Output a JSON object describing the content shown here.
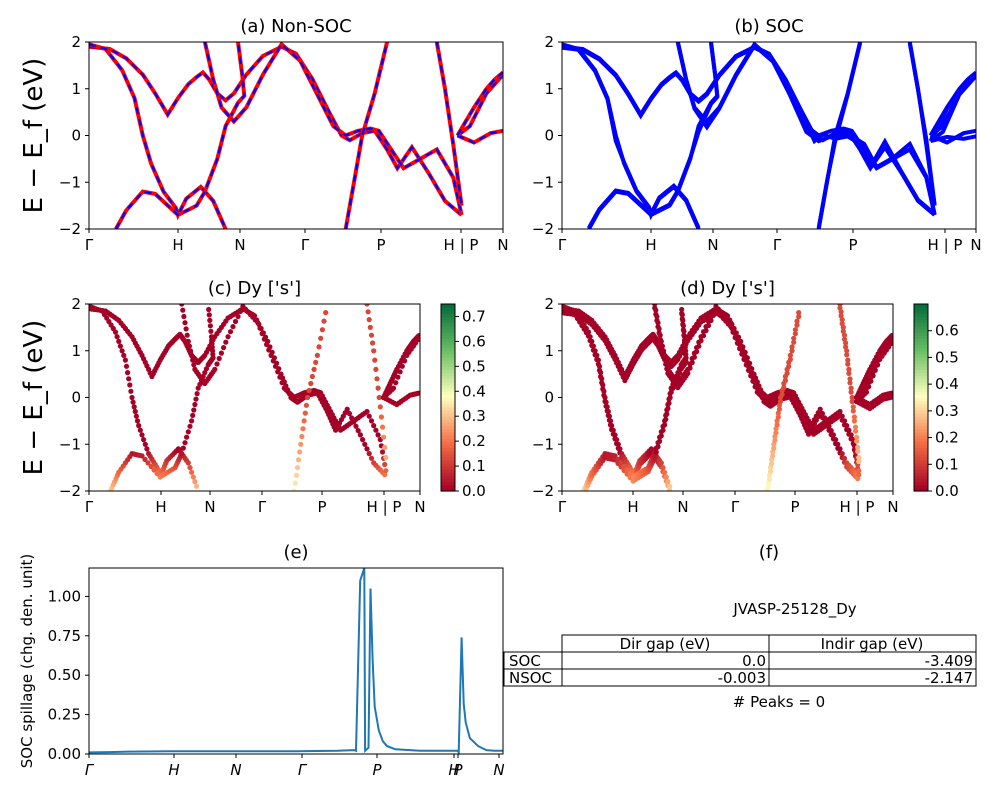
{
  "chart_data": [
    {
      "type": "line",
      "id": "a",
      "title": "(a) Non-SOC",
      "ylabel": "E − E_f (eV)",
      "ylim": [
        -2,
        2
      ],
      "yticks": [
        "2",
        "1",
        "0",
        "−1",
        "−2"
      ],
      "kpoints": [
        "Γ",
        "H",
        "N",
        "Γ",
        "P",
        "H | P",
        "N"
      ],
      "series": [
        {
          "color": "#ff0000",
          "style": "solid"
        },
        {
          "color": "#0000ff",
          "style": "dashed"
        }
      ]
    },
    {
      "type": "line",
      "id": "b",
      "title": "(b) SOC",
      "ylim": [
        -2,
        2
      ],
      "yticks": [
        "2",
        "1",
        "0",
        "−1",
        "−2"
      ],
      "kpoints": [
        "Γ",
        "H",
        "N",
        "Γ",
        "P",
        "H | P",
        "N"
      ],
      "series": [
        {
          "color": "#0000ff",
          "style": "solid"
        }
      ]
    },
    {
      "type": "scatter",
      "id": "c",
      "title": "(c)  Dy ['s']",
      "ylabel": "E − E_f (eV)",
      "ylim": [
        -2,
        2
      ],
      "yticks": [
        "2",
        "1",
        "0",
        "−1",
        "−2"
      ],
      "kpoints": [
        "Γ",
        "H",
        "N",
        "Γ",
        "P",
        "H | P",
        "N"
      ],
      "colorbar": {
        "colormap": "RdYlGn",
        "range": [
          0,
          0.75
        ],
        "ticks": [
          "0.7",
          "0.6",
          "0.5",
          "0.4",
          "0.3",
          "0.2",
          "0.1",
          "0.0"
        ]
      }
    },
    {
      "type": "scatter",
      "id": "d",
      "title": "(d) Dy ['s']",
      "ylim": [
        -2,
        2
      ],
      "yticks": [
        "2",
        "1",
        "0",
        "−1",
        "−2"
      ],
      "kpoints": [
        "Γ",
        "H",
        "N",
        "Γ",
        "P",
        "H | P",
        "N"
      ],
      "colorbar": {
        "colormap": "RdYlGn",
        "range": [
          0,
          0.7
        ],
        "ticks": [
          "0.6",
          "0.5",
          "0.4",
          "0.3",
          "0.2",
          "0.1",
          "0.0"
        ]
      }
    },
    {
      "type": "line",
      "id": "e",
      "title": "(e)",
      "ylabel": "SOC spillage (chg. den. unit)",
      "ylim": [
        0,
        1.18
      ],
      "yticks": [
        "1.00",
        "0.75",
        "0.50",
        "0.25",
        "0.00"
      ],
      "kpoints": [
        "Γ",
        "H",
        "N",
        "Γ",
        "P",
        "H",
        "P",
        "N"
      ],
      "x": [
        0,
        0.05,
        0.1,
        0.2,
        0.3,
        0.4,
        0.5,
        0.6,
        0.64,
        0.645,
        0.655,
        0.665,
        0.667,
        0.675,
        0.68,
        0.685,
        0.69,
        0.7,
        0.71,
        0.72,
        0.74,
        0.8,
        0.85,
        0.89,
        0.893,
        0.9,
        0.905,
        0.91,
        0.92,
        0.94,
        0.96,
        0.98,
        1.0
      ],
      "values": [
        0.01,
        0.012,
        0.015,
        0.018,
        0.018,
        0.018,
        0.018,
        0.02,
        0.025,
        0.02,
        1.1,
        1.18,
        0.02,
        0.04,
        1.05,
        0.6,
        0.3,
        0.15,
        0.08,
        0.05,
        0.03,
        0.02,
        0.02,
        0.02,
        0.01,
        0.74,
        0.32,
        0.2,
        0.1,
        0.05,
        0.025,
        0.02,
        0.02
      ],
      "series": [
        {
          "color": "#1f77b4"
        }
      ]
    }
  ],
  "panel_f": {
    "title": "(f)",
    "material": "JVASP-25128_Dy",
    "headers": [
      "Dir gap (eV)",
      "Indir gap (eV)"
    ],
    "rows": [
      {
        "label": "SOC",
        "dir": "0.0",
        "indir": "-3.409"
      },
      {
        "label": "NSOC",
        "dir": "-0.003",
        "indir": "-2.147"
      }
    ],
    "peaks": "# Peaks = 0"
  }
}
